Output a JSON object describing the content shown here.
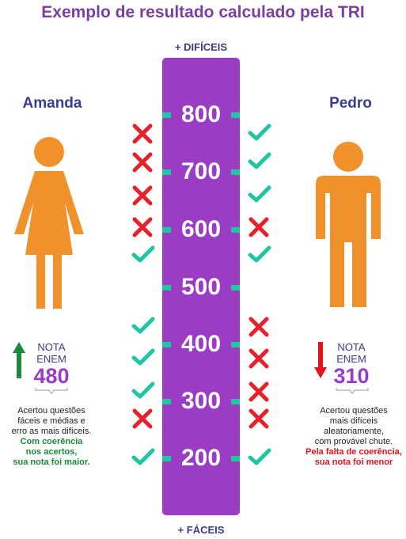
{
  "title": "Exemplo de resultado calculado pela TRI",
  "top_label": "+ DIFÍCEIS",
  "bottom_label": "+ FÁCEIS",
  "levels": [
    "800",
    "700",
    "600",
    "500",
    "400",
    "300",
    "200"
  ],
  "colors": {
    "bar": "#9a3cc4",
    "tick": "#1ec6a1",
    "check": "#1ec6a1",
    "cross": "#e8202a",
    "figure": "#f0912c",
    "up": "#1a8a3c",
    "down": "#e0141e"
  },
  "amanda": {
    "name": "Amanda",
    "nota_line1": "NOTA",
    "nota_line2": "ENEM",
    "score": "480",
    "desc_lines": [
      "Acertou questões",
      "fáceis e médias e",
      "erro as mais difíceis."
    ],
    "highlight_lines": [
      "Com coerência",
      "nos acertos,",
      "sua nota foi maior."
    ],
    "trend": "up-arrow-icon",
    "marks": [
      "cross",
      "cross",
      "cross",
      "cross",
      "check",
      "check",
      "check",
      "check",
      "cross",
      "check"
    ]
  },
  "pedro": {
    "name": "Pedro",
    "nota_line1": "NOTA",
    "nota_line2": "ENEM",
    "score": "310",
    "desc_lines": [
      "Acertou questões",
      "mais difíceis",
      "aleatoriamente,",
      "com provável chute."
    ],
    "highlight_lines": [
      "Pela falta de coerência,",
      "sua nota foi menor"
    ],
    "trend": "down-arrow-icon",
    "marks": [
      "check",
      "check",
      "check",
      "cross",
      "check",
      "cross",
      "cross",
      "cross",
      "cross",
      "check"
    ]
  }
}
